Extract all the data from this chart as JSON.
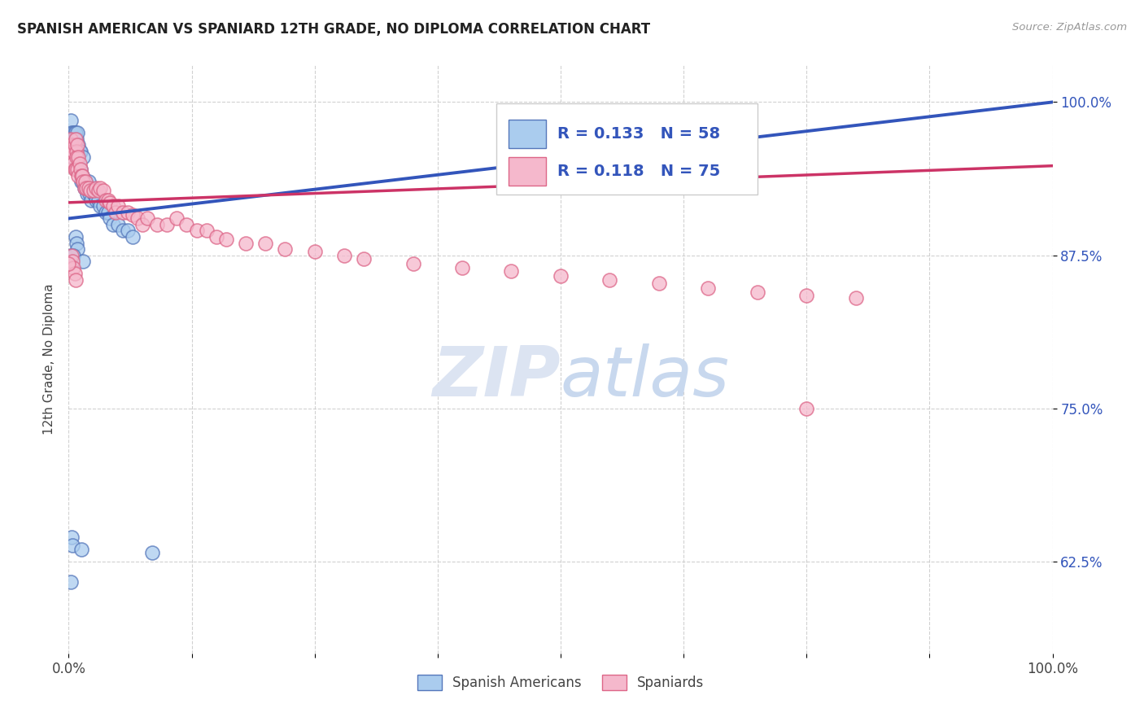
{
  "title": "SPANISH AMERICAN VS SPANIARD 12TH GRADE, NO DIPLOMA CORRELATION CHART",
  "source": "Source: ZipAtlas.com",
  "ylabel": "12th Grade, No Diploma",
  "ytick_labels": [
    "100.0%",
    "87.5%",
    "75.0%",
    "62.5%"
  ],
  "ytick_values": [
    1.0,
    0.875,
    0.75,
    0.625
  ],
  "xmin": 0.0,
  "xmax": 1.0,
  "ymin": 0.55,
  "ymax": 1.03,
  "legend_blue_label": "Spanish Americans",
  "legend_pink_label": "Spaniards",
  "R_blue": 0.133,
  "N_blue": 58,
  "R_pink": 0.118,
  "N_pink": 75,
  "blue_color": "#aaccee",
  "pink_color": "#f5b8cc",
  "blue_edge_color": "#5577bb",
  "pink_edge_color": "#dd6688",
  "blue_line_color": "#3355bb",
  "pink_line_color": "#cc3366",
  "watermark_color": "#dde4f0",
  "watermark_text_color": "#c8d0e8",
  "grid_color": "#cccccc",
  "title_color": "#222222",
  "source_color": "#999999",
  "axis_label_color": "#444444",
  "ytick_color": "#3355bb",
  "xtick_color": "#444444",
  "blue_x": [
    0.002,
    0.003,
    0.003,
    0.004,
    0.004,
    0.005,
    0.005,
    0.006,
    0.006,
    0.007,
    0.007,
    0.008,
    0.008,
    0.009,
    0.009,
    0.01,
    0.01,
    0.011,
    0.011,
    0.012,
    0.012,
    0.013,
    0.014,
    0.015,
    0.015,
    0.016,
    0.017,
    0.018,
    0.019,
    0.02,
    0.021,
    0.022,
    0.023,
    0.025,
    0.026,
    0.028,
    0.03,
    0.032,
    0.035,
    0.038,
    0.04,
    0.042,
    0.045,
    0.05,
    0.055,
    0.06,
    0.065,
    0.007,
    0.008,
    0.009,
    0.003,
    0.004,
    0.013,
    0.002,
    0.085,
    0.002,
    0.005,
    0.015
  ],
  "blue_y": [
    0.985,
    0.975,
    0.97,
    0.965,
    0.97,
    0.975,
    0.955,
    0.975,
    0.96,
    0.975,
    0.96,
    0.97,
    0.965,
    0.975,
    0.96,
    0.965,
    0.95,
    0.96,
    0.945,
    0.96,
    0.945,
    0.935,
    0.94,
    0.935,
    0.955,
    0.93,
    0.935,
    0.93,
    0.925,
    0.935,
    0.925,
    0.93,
    0.92,
    0.925,
    0.925,
    0.92,
    0.92,
    0.915,
    0.915,
    0.91,
    0.91,
    0.905,
    0.9,
    0.9,
    0.895,
    0.895,
    0.89,
    0.89,
    0.885,
    0.88,
    0.645,
    0.638,
    0.635,
    0.608,
    0.632,
    0.875,
    0.875,
    0.87
  ],
  "pink_x": [
    0.002,
    0.003,
    0.003,
    0.004,
    0.004,
    0.005,
    0.005,
    0.006,
    0.006,
    0.007,
    0.007,
    0.008,
    0.008,
    0.009,
    0.009,
    0.01,
    0.01,
    0.011,
    0.012,
    0.013,
    0.014,
    0.015,
    0.016,
    0.017,
    0.018,
    0.02,
    0.022,
    0.025,
    0.028,
    0.03,
    0.032,
    0.035,
    0.038,
    0.04,
    0.042,
    0.045,
    0.048,
    0.05,
    0.055,
    0.06,
    0.065,
    0.07,
    0.075,
    0.08,
    0.09,
    0.1,
    0.11,
    0.12,
    0.13,
    0.14,
    0.15,
    0.16,
    0.18,
    0.2,
    0.22,
    0.25,
    0.28,
    0.3,
    0.35,
    0.4,
    0.45,
    0.5,
    0.55,
    0.6,
    0.65,
    0.7,
    0.75,
    0.8,
    0.003,
    0.004,
    0.005,
    0.006,
    0.007,
    0.0,
    0.75
  ],
  "pink_y": [
    0.97,
    0.965,
    0.96,
    0.96,
    0.955,
    0.96,
    0.95,
    0.965,
    0.945,
    0.97,
    0.945,
    0.96,
    0.955,
    0.965,
    0.945,
    0.955,
    0.94,
    0.95,
    0.945,
    0.94,
    0.94,
    0.935,
    0.93,
    0.935,
    0.93,
    0.93,
    0.928,
    0.928,
    0.93,
    0.928,
    0.93,
    0.928,
    0.92,
    0.92,
    0.918,
    0.915,
    0.91,
    0.915,
    0.91,
    0.91,
    0.908,
    0.905,
    0.9,
    0.905,
    0.9,
    0.9,
    0.905,
    0.9,
    0.895,
    0.895,
    0.89,
    0.888,
    0.885,
    0.885,
    0.88,
    0.878,
    0.875,
    0.872,
    0.868,
    0.865,
    0.862,
    0.858,
    0.855,
    0.852,
    0.848,
    0.845,
    0.842,
    0.84,
    0.875,
    0.87,
    0.865,
    0.86,
    0.855,
    0.868,
    0.75
  ],
  "blue_trend_x0": 0.0,
  "blue_trend_y0": 0.905,
  "blue_trend_x1": 1.0,
  "blue_trend_y1": 1.0,
  "pink_trend_x0": 0.0,
  "pink_trend_y0": 0.918,
  "pink_trend_x1": 1.0,
  "pink_trend_y1": 0.948
}
